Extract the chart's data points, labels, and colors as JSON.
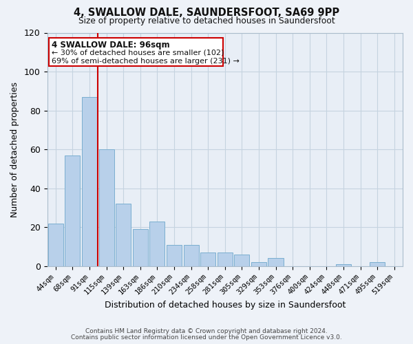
{
  "title": "4, SWALLOW DALE, SAUNDERSFOOT, SA69 9PP",
  "subtitle": "Size of property relative to detached houses in Saundersfoot",
  "xlabel": "Distribution of detached houses by size in Saundersfoot",
  "ylabel": "Number of detached properties",
  "bar_labels": [
    "44sqm",
    "68sqm",
    "91sqm",
    "115sqm",
    "139sqm",
    "163sqm",
    "186sqm",
    "210sqm",
    "234sqm",
    "258sqm",
    "281sqm",
    "305sqm",
    "329sqm",
    "353sqm",
    "376sqm",
    "400sqm",
    "424sqm",
    "448sqm",
    "471sqm",
    "495sqm",
    "519sqm"
  ],
  "bar_values": [
    22,
    57,
    87,
    60,
    32,
    19,
    23,
    11,
    11,
    7,
    7,
    6,
    2,
    4,
    0,
    0,
    0,
    1,
    0,
    2,
    0
  ],
  "bar_color": "#b8d0ea",
  "bar_edge_color": "#7aaed0",
  "vline_x": 2.5,
  "vline_color": "#cc0000",
  "ylim": [
    0,
    120
  ],
  "yticks": [
    0,
    20,
    40,
    60,
    80,
    100,
    120
  ],
  "annotation_title": "4 SWALLOW DALE: 96sqm",
  "annotation_line1": "← 30% of detached houses are smaller (102)",
  "annotation_line2": "69% of semi-detached houses are larger (231) →",
  "footer_line1": "Contains HM Land Registry data © Crown copyright and database right 2024.",
  "footer_line2": "Contains public sector information licensed under the Open Government Licence v3.0.",
  "background_color": "#eef2f8",
  "plot_bg_color": "#e8eef6",
  "grid_color": "#c5d3e0"
}
